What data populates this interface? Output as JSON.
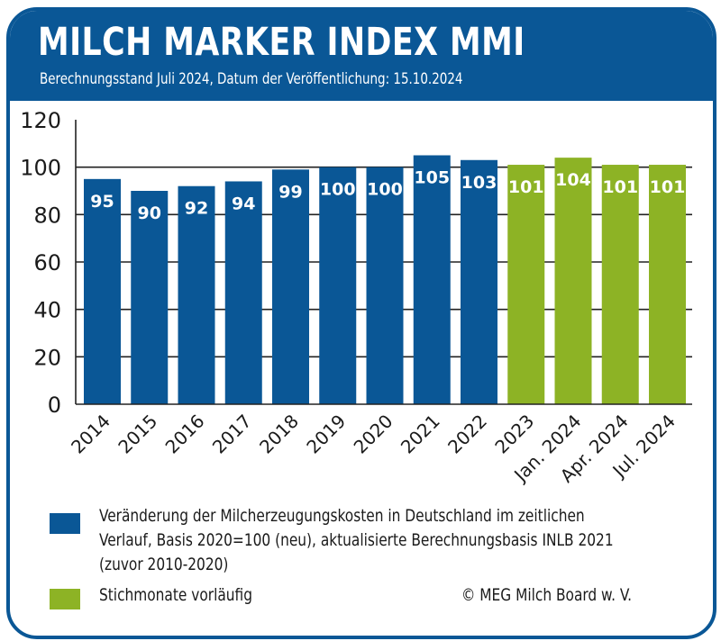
{
  "header": {
    "title": "MILCH MARKER INDEX MMI",
    "subtitle": "Berechnungsstand Juli 2024, Datum der Veröffentlichung: 15.10.2024"
  },
  "colors": {
    "brand_blue": "#0a5796",
    "preliminary_green": "#8db325",
    "axis": "#222222",
    "text": "#1a1a1a"
  },
  "chart_data": {
    "type": "bar",
    "title": "MILCH MARKER INDEX MMI",
    "subtitle": "Berechnungsstand Juli 2024, Datum der Veröffentlichung: 15.10.2024",
    "xlabel": "",
    "ylabel": "",
    "ylim": [
      0,
      120
    ],
    "yticks": [
      0,
      20,
      40,
      60,
      80,
      100,
      120
    ],
    "grid": "horizontal",
    "categories": [
      "2014",
      "2015",
      "2016",
      "2017",
      "2018",
      "2019",
      "2020",
      "2021",
      "2022",
      "2023",
      "Jan. 2024",
      "Apr. 2024",
      "Jul. 2024"
    ],
    "values": [
      95,
      90,
      92,
      94,
      99,
      100,
      100,
      105,
      103,
      101,
      104,
      101,
      101
    ],
    "bar_series": [
      "blue",
      "blue",
      "blue",
      "blue",
      "blue",
      "blue",
      "blue",
      "blue",
      "blue",
      "green",
      "green",
      "green",
      "green"
    ],
    "data_labels": [
      "95",
      "90",
      "92",
      "94",
      "99",
      "100",
      "100",
      "105",
      "103",
      "101",
      "104",
      "101",
      "101"
    ],
    "legend_position": "bottom",
    "legend": [
      {
        "key": "blue",
        "color": "#0a5796",
        "label": "Veränderung der Milcherzeugungskosten in Deutschland im zeitlichen Verlauf, Basis 2020=100 (neu), aktualisierte Berechnungsbasis INLB 2021 (zuvor 2010-2020)"
      },
      {
        "key": "green",
        "color": "#8db325",
        "label": "Stichmonate vorläufig"
      }
    ]
  },
  "legend": {
    "items": [
      {
        "color": "#0a5796",
        "lines": [
          "Veränderung der Milcherzeugungskosten in Deutschland im zeitlichen",
          "Verlauf, Basis 2020=100 (neu), aktualisierte Berechnungsbasis INLB 2021",
          "(zuvor 2010-2020)"
        ]
      },
      {
        "color": "#8db325",
        "lines": [
          "Stichmonate vorläufig"
        ]
      }
    ],
    "copyright": "© MEG Milch Board w. V."
  }
}
